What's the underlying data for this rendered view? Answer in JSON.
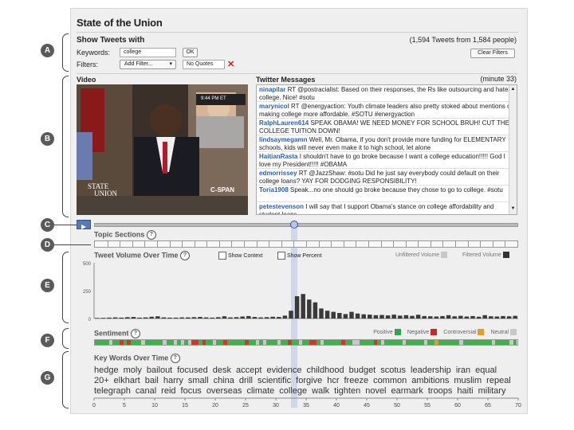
{
  "app": {
    "title": "State of the Union"
  },
  "show": {
    "header": "Show Tweets with",
    "count": "(1,594 Tweets from 1,584 people)",
    "keywords_label": "Keywords:",
    "keywords_value": "college",
    "ok": "OK",
    "clear": "Clear Filters",
    "filters_label": "Filters:",
    "add_filter": "Add Filter...",
    "dropdown_icon": "▾",
    "filter_tag": "No Quotes",
    "remove_icon": "✕"
  },
  "video": {
    "header": "Video",
    "logo_line1": "STATE",
    "logo_line2": "UNION",
    "network": "C-SPAN",
    "clock": "9:44 PM ET"
  },
  "twitter": {
    "header": "Twitter Messages",
    "minute": "(minute 33)",
    "tweets": [
      {
        "user": "ninapilar",
        "text": " RT @postracialist: Based on their responses, the Rs like outsourcing and hate college. Nice! #sotu"
      },
      {
        "user": "marynicol",
        "text": " RT @energyaction: Youth climate leaders also pretty stoked about mentions of making college more affordable. #SOTU #energyaction"
      },
      {
        "user": "RalphLauren614",
        "text": " SPEAK OBAMA! WE NEED MONEY FOR SCHOOL BRUH! CUT THE COLLEGE TUITION DOWN!"
      },
      {
        "user": "lindsaymegamn",
        "text": " Well, Mr. Obama, if you don't provide more funding for ELEMENTARY schools, kids will never even make it to high school, let alone"
      },
      {
        "user": "HaitianRasta",
        "text": " I shouldn't have to go broke because I want a college education!!!!! God I love my President!!!!! #OBAMA"
      },
      {
        "user": "edmorrissey",
        "text": " RT @JazzShaw: #sotu Did he just say everybody could default on their college loans? YAY FOR DODGING RESPONSIBILITY!"
      },
      {
        "user": "Toria1908",
        "text": " Speak...no one should go broke because they chose to go to college. #sotu"
      },
      {
        "user": "petestevenson",
        "text": " I will say that I support Obama's stance on college affordability and student loans"
      }
    ]
  },
  "labels": {
    "a": "A",
    "b": "B",
    "c": "C",
    "d": "D",
    "e": "E",
    "f": "F",
    "g": "G"
  },
  "topic": {
    "header": "Topic Sections",
    "help": "?"
  },
  "volume": {
    "header": "Tweet Volume Over Time",
    "help": "?",
    "show_context": "Show Context",
    "show_percent": "Show Percent",
    "unfiltered": "Unfiltered Volume",
    "filtered": "Filtered Volume",
    "y_ticks": [
      "500",
      "250",
      "0"
    ]
  },
  "sentiment": {
    "header": "Sentiment",
    "help": "?",
    "legend": [
      {
        "label": "Positive",
        "color": "#2ea64b"
      },
      {
        "label": "Negative",
        "color": "#c8282a"
      },
      {
        "label": "Controversial",
        "color": "#e69a28"
      },
      {
        "label": "Neutral",
        "color": "#c8c8c8"
      }
    ],
    "sequence": [
      "g",
      "g",
      "g",
      "g",
      "n",
      "g",
      "g",
      "r",
      "g",
      "r",
      "g",
      "g",
      "g",
      "n",
      "g",
      "g",
      "g",
      "g",
      "g",
      "n",
      "g",
      "g",
      "n",
      "g",
      "n",
      "g",
      "n",
      "r",
      "r",
      "g",
      "r",
      "g",
      "g",
      "n",
      "g",
      "g",
      "r",
      "g",
      "g",
      "g",
      "g",
      "g",
      "r",
      "g",
      "g",
      "n",
      "g",
      "n",
      "g",
      "g",
      "g",
      "n",
      "g",
      "g",
      "r",
      "g",
      "g",
      "n",
      "g",
      "g",
      "r",
      "r",
      "g",
      "n",
      "g",
      "g",
      "g",
      "g",
      "g",
      "r",
      "g",
      "g",
      "n",
      "n",
      "g",
      "g",
      "g",
      "g",
      "r",
      "g",
      "n",
      "g",
      "g",
      "g",
      "g",
      "g",
      "n",
      "g",
      "g",
      "g",
      "g",
      "g",
      "n",
      "g",
      "g",
      "o",
      "g",
      "g",
      "g",
      "g",
      "g",
      "g",
      "n",
      "g",
      "g",
      "g",
      "g",
      "g",
      "g",
      "g",
      "g",
      "n",
      "g",
      "g",
      "g",
      "g",
      "n",
      "g"
    ]
  },
  "keywords": {
    "header": "Key Words Over Time",
    "help": "?",
    "rows": [
      [
        "hedge",
        "moly",
        "bailout",
        "focused",
        "desk",
        "accept",
        "evidence",
        "childhood",
        "budget",
        "scotus",
        "leadership",
        "iran",
        "equal"
      ],
      [
        "20+",
        "elkhart",
        "bail",
        "harry",
        "small",
        "china",
        "drill",
        "scientific",
        "forgive",
        "hcr",
        "freeze",
        "common",
        "ambitions",
        "muslim",
        "repeal"
      ],
      [
        "telegraph",
        "canal",
        "reid",
        "focus",
        "overseas",
        "climate",
        "college",
        "walk",
        "tighten",
        "novel",
        "earmark",
        "troops",
        "haiti",
        "military"
      ]
    ],
    "x_ticks": [
      "0",
      "5",
      "10",
      "15",
      "20",
      "25",
      "30",
      "35",
      "40",
      "45",
      "50",
      "55",
      "60",
      "65",
      "70"
    ]
  },
  "chart_data": {
    "type": "bar",
    "title": "Tweet Volume Over Time",
    "xlabel": "",
    "ylabel": "",
    "ylim": [
      0,
      500
    ],
    "x_range": [
      0,
      70
    ],
    "x": [
      0,
      1,
      2,
      3,
      4,
      5,
      6,
      7,
      8,
      9,
      10,
      11,
      12,
      13,
      14,
      15,
      16,
      17,
      18,
      19,
      20,
      21,
      22,
      23,
      24,
      25,
      26,
      27,
      28,
      29,
      30,
      31,
      32,
      33,
      34,
      35,
      36,
      37,
      38,
      39,
      40,
      41,
      42,
      43,
      44,
      45,
      46,
      47,
      48,
      49,
      50,
      51,
      52,
      53,
      54,
      55,
      56,
      57,
      58,
      59,
      60,
      61,
      62,
      63,
      64,
      65,
      66,
      67,
      68,
      69
    ],
    "series": [
      {
        "name": "Filtered Volume",
        "color": "#444444",
        "values": [
          0,
          0,
          0,
          0,
          0,
          0,
          0,
          0,
          0,
          0,
          0,
          0,
          0,
          0,
          0,
          0,
          0,
          0,
          0,
          0,
          0,
          0,
          0,
          0,
          0,
          0,
          0,
          0,
          0,
          0,
          0,
          0,
          0,
          0,
          0,
          0,
          0,
          0,
          0,
          0,
          0,
          0,
          0,
          0,
          0,
          0,
          0,
          0,
          0,
          0,
          0,
          0,
          0,
          0,
          0,
          0,
          0,
          0,
          0,
          0,
          0,
          0,
          0,
          0,
          0,
          0,
          0,
          0,
          0,
          0
        ]
      },
      {
        "name": "Unfiltered Volume",
        "color": "#c8c8c8",
        "values": [
          5,
          6,
          8,
          10,
          8,
          12,
          14,
          8,
          10,
          16,
          20,
          10,
          8,
          8,
          10,
          10,
          12,
          14,
          10,
          8,
          12,
          20,
          10,
          12,
          18,
          22,
          14,
          10,
          12,
          16,
          14,
          26,
          70,
          200,
          220,
          170,
          145,
          90,
          70,
          60,
          50,
          40,
          60,
          45,
          38,
          35,
          30,
          32,
          28,
          35,
          26,
          30,
          24,
          34,
          22,
          20,
          18,
          22,
          30,
          20,
          24,
          18,
          22,
          16,
          30,
          20,
          18,
          22,
          20,
          24
        ]
      }
    ],
    "current_minute": 33
  }
}
